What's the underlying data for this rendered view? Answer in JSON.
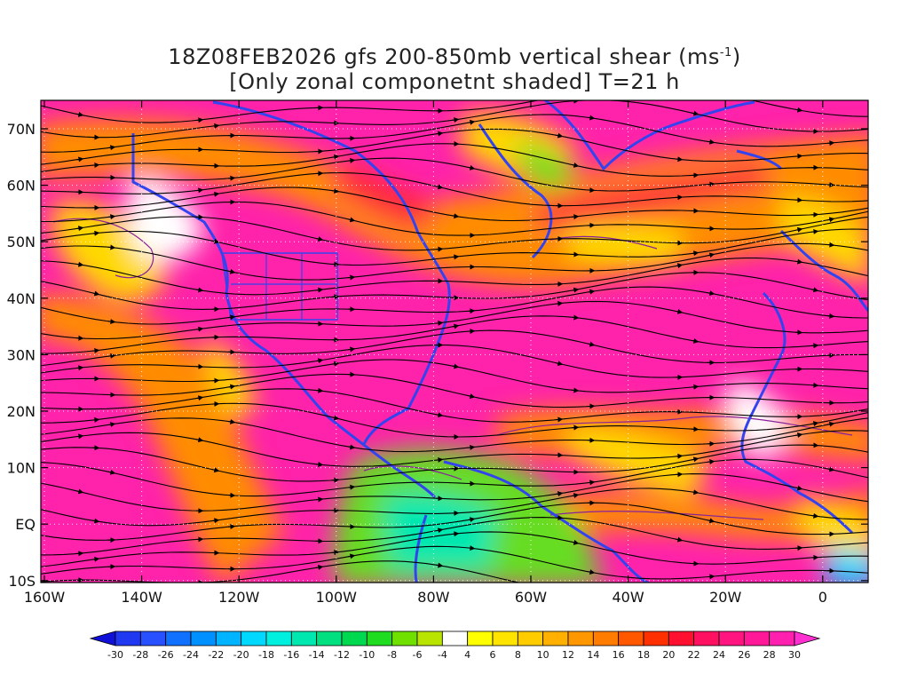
{
  "title": {
    "line1_main": "18Z08FEB2026 gfs 200-850mb vertical shear (ms",
    "line1_sup": "-1",
    "line1_end": ")",
    "line2": "[Only zonal componetnt shaded] T=21 h"
  },
  "map": {
    "lat_labels": [
      "70N",
      "60N",
      "50N",
      "40N",
      "30N",
      "20N",
      "10N",
      "EQ",
      "10S"
    ],
    "lon_labels": [
      "160W",
      "140W",
      "120W",
      "100W",
      "80W",
      "60W",
      "40W",
      "20W",
      "0"
    ],
    "colors": {
      "deep_shear": "#ff22aa",
      "strong": "#ff2a3a",
      "moderate": "#ff8c00",
      "weak": "#ffd800",
      "calm": "#ffffff",
      "easterly": "#66dd22",
      "coastline": "#3344ee",
      "contour": "#882299",
      "streamline": "#000000"
    }
  },
  "colorbar": {
    "labels": [
      "-30",
      "-28",
      "-26",
      "-24",
      "-22",
      "-20",
      "-18",
      "-16",
      "-14",
      "-12",
      "-10",
      "-8",
      "-6",
      "-4",
      "4",
      "6",
      "8",
      "10",
      "12",
      "14",
      "16",
      "18",
      "20",
      "22",
      "24",
      "26",
      "28",
      "30"
    ],
    "colors": [
      "#1010d8",
      "#2038f0",
      "#2850ff",
      "#1070ff",
      "#0090ff",
      "#00b4ff",
      "#00d8ff",
      "#00f0e0",
      "#00e8b0",
      "#00e080",
      "#00d850",
      "#20dc20",
      "#70e000",
      "#b8e400",
      "#ffffff",
      "#ffff00",
      "#ffe400",
      "#ffcc00",
      "#ffb000",
      "#ff9800",
      "#ff7c00",
      "#ff5800",
      "#ff3000",
      "#ff1030",
      "#ff1060",
      "#ff1480",
      "#ff1898",
      "#ff20b0",
      "#ff30d0"
    ]
  }
}
